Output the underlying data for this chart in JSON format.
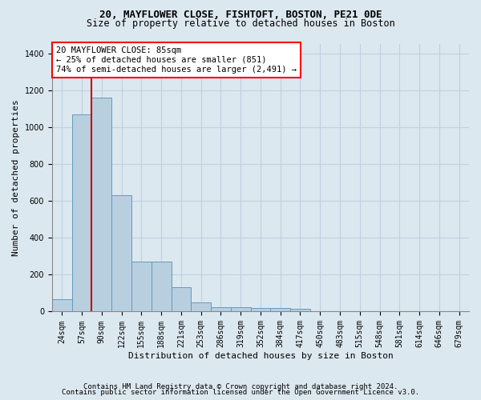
{
  "title_line1": "20, MAYFLOWER CLOSE, FISHTOFT, BOSTON, PE21 0DE",
  "title_line2": "Size of property relative to detached houses in Boston",
  "xlabel": "Distribution of detached houses by size in Boston",
  "ylabel": "Number of detached properties",
  "categories": [
    "24sqm",
    "57sqm",
    "90sqm",
    "122sqm",
    "155sqm",
    "188sqm",
    "221sqm",
    "253sqm",
    "286sqm",
    "319sqm",
    "352sqm",
    "384sqm",
    "417sqm",
    "450sqm",
    "483sqm",
    "515sqm",
    "548sqm",
    "581sqm",
    "614sqm",
    "646sqm",
    "679sqm"
  ],
  "values": [
    65,
    1070,
    1160,
    630,
    270,
    270,
    130,
    50,
    25,
    25,
    20,
    20,
    15,
    0,
    0,
    0,
    0,
    0,
    0,
    0,
    0
  ],
  "bar_color": "#b8cfe0",
  "bar_edge_color": "#6699bb",
  "red_line_x": 1.5,
  "annotation_text": "20 MAYFLOWER CLOSE: 85sqm\n← 25% of detached houses are smaller (851)\n74% of semi-detached houses are larger (2,491) →",
  "annotation_box_color": "white",
  "annotation_box_edge_color": "red",
  "red_line_color": "#cc0000",
  "ylim": [
    0,
    1450
  ],
  "yticks": [
    0,
    200,
    400,
    600,
    800,
    1000,
    1200,
    1400
  ],
  "grid_color": "#c0d0e0",
  "background_color": "#dce8f0",
  "footer_line1": "Contains HM Land Registry data © Crown copyright and database right 2024.",
  "footer_line2": "Contains public sector information licensed under the Open Government Licence v3.0.",
  "title_fontsize": 9,
  "subtitle_fontsize": 8.5,
  "axis_label_fontsize": 8,
  "tick_fontsize": 7,
  "footer_fontsize": 6.5,
  "annotation_fontsize": 7.5
}
